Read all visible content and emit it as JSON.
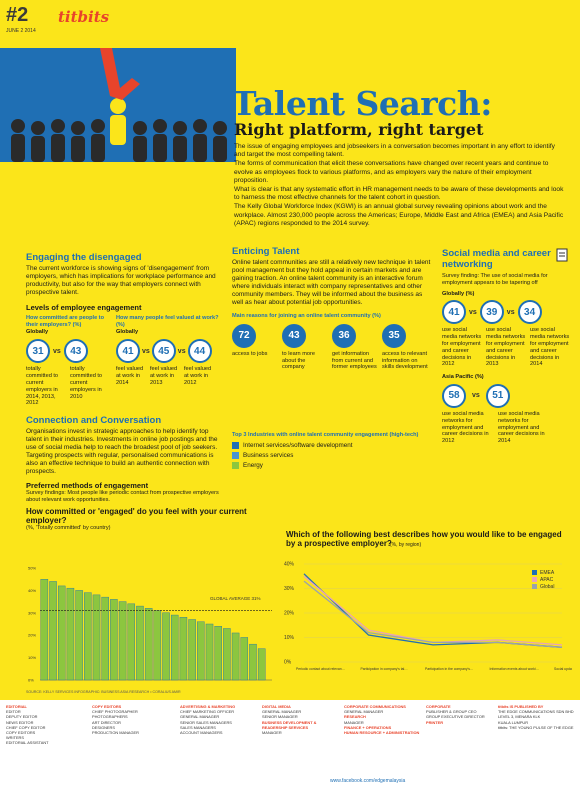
{
  "header": {
    "issue": "#2",
    "date": "JUNE 2 2014",
    "brand": "titbits"
  },
  "hero": {
    "title": "Talent Search:",
    "subtitle": "Right platform, right target",
    "intro": [
      "The issue of engaging employees and jobseekers in a conversation becomes important in any effort to identify and target the most compelling talent.",
      "The forms of communication that elicit these conversations have changed over recent years and continue to evolve as employees flock to various platforms, and as employers vary the nature of their employment proposition.",
      "What is clear is that any systematic effort in HR management needs to be aware of these developments and look to harness the most effective channels for the talent cohort in question.",
      "The Kelly Global Workforce Index (KGWI) is an annual global survey revealing opinions about work and the workplace. Almost 230,000 people across the Americas; Europe, Middle East and Africa (EMEA) and Asia Pacific (APAC) regions responded to the 2014 survey."
    ]
  },
  "disengaged": {
    "heading": "Engaging the disengaged",
    "text": "The current workforce is showing signs of 'disengagement' from employers, which has implications for workplace performance and productivity, but also for the way that employers connect with prospective talent.",
    "levels_heading": "Levels of employee engagement",
    "committed_q": "How committed are people to their employers? (%)",
    "committed_region": "Globally",
    "committed_vals": [
      "31",
      "43"
    ],
    "committed_labels": [
      "totally committed to current employers in 2014, 2013, 2012",
      "totally committed to current employers in 2010"
    ],
    "valued_q": "How many people feel valued at work? (%)",
    "valued_region": "Globally",
    "valued_vals": [
      "41",
      "45",
      "44"
    ],
    "valued_labels": [
      "feel valued at work in 2014",
      "feel valued at work in 2013",
      "feel valued at work in 2012"
    ]
  },
  "connection": {
    "heading": "Connection and Conversation",
    "text": "Organisations invest in strategic approaches to help identify top talent in their industries. Investments in online job postings and the use of social media help to reach the broadest pool of job seekers. Targeting prospects with regular, personalised communications is also an effective technique to build an authentic connection with prospects.",
    "pref_heading": "Preferred methods of engagement",
    "pref_text": "Survey findings: Most people like periodic contact from prospective employers about relevant work opportunities.",
    "q": "How committed or 'engaged' do you feel with your current employer?",
    "q_sub": "(%, 'Totally committed' by country)",
    "global_avg": "GLOBAL AVERAGE 31%",
    "source": "SOURCE: KELLY SERVICES    INFOGRAPHIC: BUSINESS ASIA RESEARCH • CORALIUS AMIR"
  },
  "enticing": {
    "heading": "Enticing Talent",
    "text": "Online talent communities are still a relatively new technique in talent pool management but they hold appeal in certain markets and are gaining traction. An online talent community is an interactive forum where individuals interact with company representatives and other community members. They will be informed about the business as well as hear about potential job opportunities.",
    "reasons_heading": "Main reasons for joining an online talent community (%)",
    "reasons": [
      {
        "value": "72",
        "label": "access to jobs"
      },
      {
        "value": "43",
        "label": "to learn more about the company"
      },
      {
        "value": "36",
        "label": "get information from current and former employees"
      },
      {
        "value": "35",
        "label": "access to relevant information on skills development"
      }
    ],
    "industries_heading": "Top 3 Industries with online talent community engagement (high-tech)",
    "industries": [
      {
        "label": "Internet services/software development",
        "color": "#1f6fb4"
      },
      {
        "label": "Business services",
        "color": "#4a95d1"
      },
      {
        "label": "Energy",
        "color": "#8cc63f"
      }
    ]
  },
  "social": {
    "heading": "Social media and career networking",
    "finding": "Survey finding: The use of social media for employment appears to be tapering off",
    "global_label": "Globally (%)",
    "global_vals": [
      "41",
      "39",
      "34"
    ],
    "global_labels": [
      "use social media networks for employment and career decisions in 2012",
      "use social media networks for employment and career decisions in 2013",
      "use social media networks for employment and career decisions in 2014"
    ],
    "apac_label": "Asia Pacific (%)",
    "apac_vals": [
      "58",
      "51"
    ],
    "apac_labels": [
      "use social media networks for employment and career decisions in 2012",
      "use social media networks for employment and career decisions in 2014"
    ]
  },
  "line_chart_title": "Which of the following best describes how you would like to be engaged by a prospective employer?",
  "line_chart_sub": "(%, by region)",
  "chart_data": [
    {
      "type": "bar",
      "title": "How committed or 'engaged' do you feel with your current employer?",
      "ylabel": "%",
      "ylim": [
        0,
        50
      ],
      "series": [
        {
          "name": "Totally committed",
          "values": [
            45,
            44,
            42,
            41,
            40,
            39,
            38,
            37,
            36,
            35,
            34,
            33,
            32,
            31,
            30,
            29,
            28,
            27,
            26,
            25,
            24,
            23,
            21,
            19,
            16,
            14
          ]
        }
      ],
      "categories": [
        "",
        "",
        "",
        "",
        "",
        "",
        "",
        "",
        "",
        "",
        "",
        "",
        "",
        "",
        "",
        "",
        "",
        "",
        "",
        "",
        "",
        "",
        "",
        "",
        "",
        ""
      ],
      "reference_line": 31
    },
    {
      "type": "line",
      "title": "Which of the following best describes how you would like to be engaged by a prospective employer?",
      "ylim": [
        0,
        40
      ],
      "yticks": [
        "0%",
        "10%",
        "20%",
        "30%",
        "40%"
      ],
      "categories": [
        "Periodic contact about relevant work opportunities",
        "Participation in company's talent community",
        "Participation in the company's talent community",
        "Information events about working for the company",
        "Social updates on company's hiring activity"
      ],
      "series": [
        {
          "name": "EMEA",
          "color": "#1f6fb4",
          "values": [
            36,
            11,
            7,
            8,
            6
          ]
        },
        {
          "name": "APAC",
          "color": "#e8a3b8",
          "values": [
            35,
            13,
            8,
            9,
            7
          ]
        },
        {
          "name": "Global",
          "color": "#9aa3ae",
          "values": [
            33,
            12,
            8,
            8,
            6
          ]
        }
      ]
    }
  ],
  "footer": {
    "fb": "www.facebook.com/edgemalaysia"
  }
}
